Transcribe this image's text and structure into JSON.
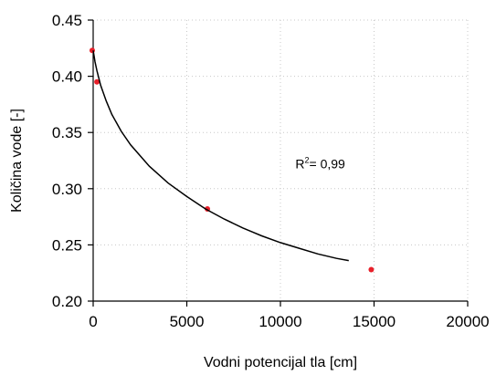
{
  "chart_data": {
    "type": "scatter",
    "title": "",
    "xlabel": "Vodni potencijal tla [cm]",
    "ylabel": "Količina vode [-]",
    "xlim": [
      0,
      20000
    ],
    "ylim": [
      0.2,
      0.45
    ],
    "x_ticks": [
      "0",
      "5000",
      "10000",
      "15000",
      "20000"
    ],
    "x_tick_values": [
      0,
      5000,
      10000,
      15000,
      20000
    ],
    "y_ticks": [
      "0.20",
      "0.25",
      "0.30",
      "0.35",
      "0.40",
      "0.45"
    ],
    "y_tick_values": [
      0.2,
      0.25,
      0.3,
      0.35,
      0.4,
      0.45
    ],
    "grid": true,
    "series": [
      {
        "kind": "points",
        "color": "#e8202a",
        "x": [
          -50,
          200,
          6100,
          14850
        ],
        "y": [
          0.423,
          0.395,
          0.282,
          0.228
        ]
      },
      {
        "kind": "fitted-curve",
        "color": "#000000",
        "x": [
          0,
          100,
          200,
          400,
          700,
          1000,
          1500,
          2000,
          3000,
          4000,
          5000,
          6000,
          7000,
          8000,
          9000,
          10000,
          11000,
          12000,
          13000,
          13650
        ],
        "y": [
          0.423,
          0.413,
          0.405,
          0.392,
          0.378,
          0.366,
          0.351,
          0.339,
          0.32,
          0.305,
          0.293,
          0.282,
          0.273,
          0.265,
          0.258,
          0.252,
          0.247,
          0.242,
          0.238,
          0.236
        ]
      }
    ],
    "annotations": [
      {
        "base": "R",
        "sup": "2",
        "text": "= 0,99",
        "x": 10800,
        "y": 0.318
      }
    ]
  }
}
